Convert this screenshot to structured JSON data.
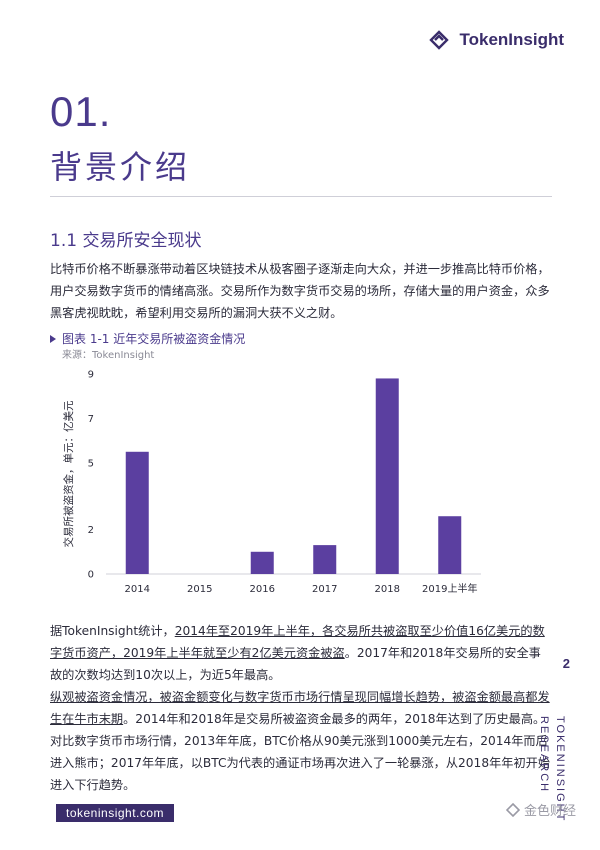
{
  "header": {
    "logo_text": "TokenInsight"
  },
  "section": {
    "number": "01.",
    "title": "背景介绍",
    "subtitle": "1.1 交易所安全现状"
  },
  "para1": "比特币价格不断暴涨带动着区块链技术从极客圈子逐渐走向大众，并进一步推高比特币价格，用户交易数字货币的情绪高涨。交易所作为数字货币交易的场所，存储大量的用户资金，众多黑客虎视眈眈，希望利用交易所的漏洞大获不义之财。",
  "figure": {
    "title": "图表 1-1 近年交易所被盗资金情况",
    "source": "来源：TokenInsight"
  },
  "chart_data": {
    "type": "bar",
    "categories": [
      "2014",
      "2015",
      "2016",
      "2017",
      "2018",
      "2019上半年"
    ],
    "values": [
      5.5,
      0,
      1.0,
      1.3,
      8.8,
      2.6
    ],
    "ylabel": "交易所被盗资金，单元：亿美元",
    "yticks": [
      0,
      2,
      5,
      7,
      9
    ],
    "ylim": [
      0,
      9
    ],
    "bar_color": "#5b3fa0"
  },
  "para2": {
    "lead": "据TokenInsight统计，",
    "underlined": "2014年至2019年上半年，各交易所共被盗取至少价值16亿美元的数字货币资产，2019年上半年就至少有2亿美元资金被盗",
    "tail": "。2017年和2018年交易所的安全事故的次数均达到10次以上，为近5年最高。"
  },
  "para3": {
    "underlined": "纵观被盗资金情况，被盗金额变化与数字货币市场行情呈现同幅增长趋势，被盗金额最高都发生在牛市末期",
    "tail": "。2014年和2018年是交易所被盗资金最多的两年，2018年达到了历史最高。对比数字货币市场行情，2013年年底，BTC价格从90美元涨到1000美元左右，2014年而后进入熊市；2017年年底，以BTC为代表的通证市场再次进入了一轮暴涨，从2018年年初开始进入下行趋势。"
  },
  "footer": {
    "page_number": "2",
    "side_line1": "TOKENINSIGHT",
    "side_line2": "RESEARCH",
    "url": "tokeninsight.com",
    "watermark": "金色财经"
  }
}
